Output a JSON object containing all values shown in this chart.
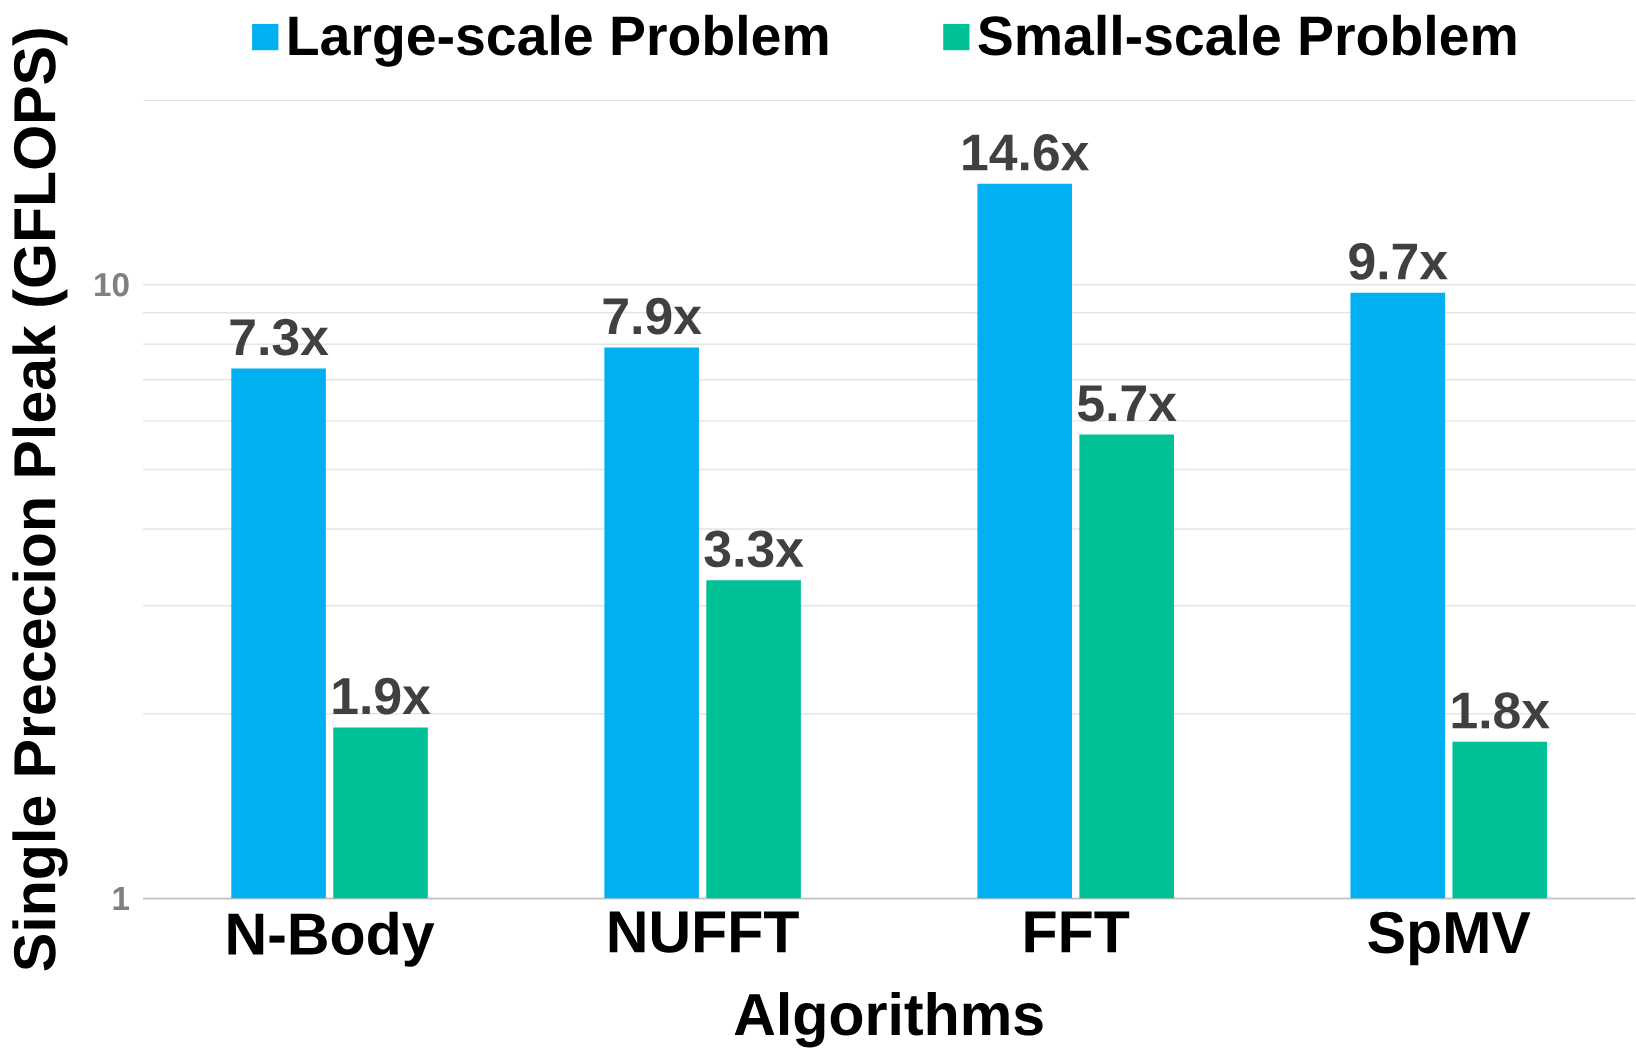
{
  "chart_data": {
    "type": "bar",
    "xlabel": "Algorithms",
    "ylabel": "Single Prececion Pleak (GFLOPS)",
    "categories": [
      "N-Body",
      "NUFFT",
      "FFT",
      "SpMV"
    ],
    "series": [
      {
        "name": "Large-scale Problem",
        "color": "#00b0f0",
        "values": [
          7.3,
          7.9,
          14.6,
          9.7
        ],
        "value_labels": [
          "7.3x",
          "7.9x",
          "14.6x",
          "9.7x"
        ]
      },
      {
        "name": "Small-scale Problem",
        "color": "#00c096",
        "values": [
          1.9,
          3.3,
          5.7,
          1.8
        ],
        "value_labels": [
          "1.9x",
          "3.3x",
          "5.7x",
          "1.8x"
        ]
      }
    ],
    "log": true,
    "ylim": [
      1,
      20
    ],
    "yticks": [
      1,
      10
    ],
    "grid": "y",
    "legend": "top"
  }
}
